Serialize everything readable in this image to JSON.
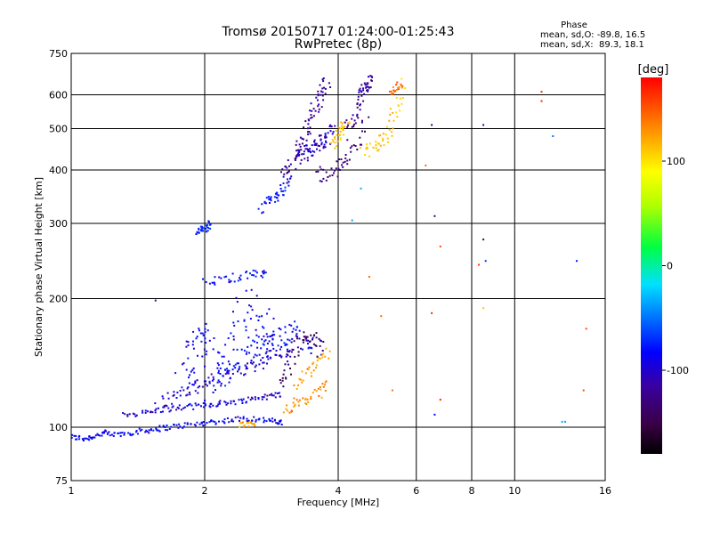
{
  "chart_data": {
    "type": "scatter",
    "title": "Tromsø 20150717 01:24:00-01:25:43",
    "subtitle": "RwPretec (8p)",
    "xlabel": "Frequency [MHz]",
    "ylabel": "Stationary phase Virtual Height [km]",
    "x_scale": "log",
    "y_scale": "log",
    "xlim": [
      1,
      16
    ],
    "ylim": [
      75,
      750
    ],
    "x_ticks": [
      1,
      2,
      4,
      6,
      8,
      10,
      16
    ],
    "x_tick_labels": [
      "1",
      "2",
      "4",
      "6",
      "8",
      "10",
      "16"
    ],
    "y_ticks": [
      75,
      100,
      200,
      300,
      400,
      500,
      600,
      750
    ],
    "y_tick_labels": [
      "75",
      "100",
      "200",
      "300",
      "400",
      "500",
      "600",
      "750"
    ],
    "grid": true,
    "phase_box": {
      "title": "Phase",
      "line1": "mean, sd,O: -89.8, 16.5",
      "line2": "mean, sd,X:  89.3, 18.1"
    },
    "colorbar": {
      "label": "[deg]",
      "range": [
        -180,
        180
      ],
      "ticks": [
        100,
        0,
        -100
      ],
      "tick_labels": [
        "100",
        "0",
        "-100"
      ]
    },
    "traces": [
      {
        "x": [
          1.0,
          1.06,
          1.12,
          1.18,
          1.25,
          1.35,
          1.45,
          1.55,
          1.65,
          1.8,
          1.95,
          2.1,
          2.3,
          2.5,
          2.7,
          2.9,
          3.0
        ],
        "y": [
          95,
          94,
          95,
          97,
          96,
          97,
          98,
          99,
          100,
          101,
          102,
          103,
          104,
          105,
          104,
          103,
          102
        ],
        "phase": -100,
        "spread": 0.02
      },
      {
        "x": [
          1.3,
          1.45,
          1.6,
          1.75,
          1.9,
          2.05,
          2.2,
          2.4,
          2.6,
          2.8,
          3.0
        ],
        "y": [
          107,
          108,
          110,
          111,
          112,
          113,
          114,
          115,
          117,
          118,
          120
        ],
        "phase": -105,
        "spread": 0.02
      },
      {
        "x": [
          1.55,
          1.7,
          1.85,
          2.0,
          2.2,
          2.4,
          2.6,
          2.8,
          3.0,
          3.2
        ],
        "y": [
          112,
          118,
          123,
          127,
          131,
          135,
          140,
          145,
          150,
          155
        ],
        "phase": -110,
        "spread": 0.05
      },
      {
        "x": [
          2.0,
          2.2,
          2.4,
          2.6,
          2.8,
          3.0,
          3.2,
          3.4,
          3.6
        ],
        "y": [
          120,
          130,
          140,
          150,
          160,
          165,
          170,
          160,
          150
        ],
        "phase": -95,
        "spread": 0.07
      },
      {
        "x": [
          1.75,
          1.85,
          1.9,
          1.95,
          2.0,
          2.1,
          2.2,
          2.3,
          2.4,
          2.5,
          2.6,
          2.7,
          2.8,
          2.9,
          3.0
        ],
        "y": [
          122,
          135,
          150,
          165,
          160,
          140,
          130,
          150,
          180,
          200,
          170,
          145,
          180,
          160,
          140
        ],
        "phase": -100,
        "spread": 0.1
      },
      {
        "x": [
          3.0,
          3.2,
          3.4,
          3.6,
          3.8
        ],
        "y": [
          110,
          113,
          116,
          120,
          128
        ],
        "phase": 140,
        "spread": 0.04
      },
      {
        "x": [
          3.2,
          3.4,
          3.6,
          3.8
        ],
        "y": [
          125,
          135,
          145,
          150
        ],
        "phase": 135,
        "spread": 0.05
      },
      {
        "x": [
          2.4,
          2.5,
          2.6
        ],
        "y": [
          101,
          102,
          101
        ],
        "phase": 130,
        "spread": 0.02
      },
      {
        "x": [
          2.95,
          3.1,
          3.25,
          3.4,
          3.55,
          3.7
        ],
        "y": [
          125,
          140,
          155,
          165,
          160,
          150
        ],
        "phase": -140,
        "spread": 0.05
      },
      {
        "x": [
          1.92,
          1.97,
          2.02,
          2.06
        ],
        "y": [
          285,
          292,
          290,
          302
        ],
        "phase": -90,
        "spread": 0.02
      },
      {
        "x": [
          2.0,
          2.2,
          2.4,
          2.6,
          2.8
        ],
        "y": [
          218,
          222,
          225,
          230,
          225
        ],
        "phase": -95,
        "spread": 0.03
      },
      {
        "x": [
          2.7,
          2.8,
          2.9,
          3.0,
          3.1
        ],
        "y": [
          320,
          340,
          350,
          360,
          380
        ],
        "phase": -95,
        "spread": 0.04
      },
      {
        "x": [
          3.0,
          3.1,
          3.2,
          3.3,
          3.4,
          3.5,
          3.6,
          3.7,
          3.8
        ],
        "y": [
          380,
          400,
          430,
          460,
          500,
          540,
          580,
          620,
          640
        ],
        "phase": -120,
        "spread": 0.05
      },
      {
        "x": [
          3.2,
          3.3,
          3.4,
          3.5,
          3.6,
          3.7,
          3.8,
          3.9
        ],
        "y": [
          420,
          430,
          440,
          450,
          460,
          470,
          480,
          500
        ],
        "phase": -110,
        "spread": 0.05
      },
      {
        "x": [
          3.6,
          3.8,
          4.0,
          4.2,
          4.4,
          4.6
        ],
        "y": [
          390,
          395,
          405,
          430,
          470,
          560
        ],
        "phase": -130,
        "spread": 0.06
      },
      {
        "x": [
          4.2,
          4.4,
          4.5,
          4.6,
          4.7,
          4.8
        ],
        "y": [
          500,
          550,
          600,
          620,
          640,
          660
        ],
        "phase": -120,
        "spread": 0.04
      },
      {
        "x": [
          3.9,
          4.0,
          4.1,
          4.2
        ],
        "y": [
          450,
          480,
          500,
          520
        ],
        "phase": 120,
        "spread": 0.04
      },
      {
        "x": [
          4.6,
          4.8,
          5.0,
          5.2,
          5.4,
          5.6
        ],
        "y": [
          445,
          450,
          470,
          490,
          550,
          640
        ],
        "phase": 120,
        "spread": 0.05
      },
      {
        "x": [
          5.2,
          5.4,
          5.6
        ],
        "y": [
          600,
          620,
          640
        ],
        "phase": 150,
        "spread": 0.03
      }
    ],
    "isolated_points": [
      {
        "x": 6.5,
        "y": 510,
        "phase": -110
      },
      {
        "x": 6.3,
        "y": 410,
        "phase": 150
      },
      {
        "x": 6.6,
        "y": 312,
        "phase": -140
      },
      {
        "x": 6.8,
        "y": 265,
        "phase": 160
      },
      {
        "x": 6.5,
        "y": 185,
        "phase": 170
      },
      {
        "x": 6.8,
        "y": 116,
        "phase": 170
      },
      {
        "x": 6.6,
        "y": 107,
        "phase": -100
      },
      {
        "x": 8.5,
        "y": 510,
        "phase": -110
      },
      {
        "x": 8.5,
        "y": 275,
        "phase": -140
      },
      {
        "x": 8.6,
        "y": 245,
        "phase": -80
      },
      {
        "x": 8.3,
        "y": 240,
        "phase": 165
      },
      {
        "x": 8.5,
        "y": 190,
        "phase": 120
      },
      {
        "x": 11.5,
        "y": 610,
        "phase": 170
      },
      {
        "x": 11.5,
        "y": 580,
        "phase": 170
      },
      {
        "x": 12.2,
        "y": 480,
        "phase": -60
      },
      {
        "x": 12.8,
        "y": 103,
        "phase": -40
      },
      {
        "x": 13.0,
        "y": 103,
        "phase": -40
      },
      {
        "x": 13.8,
        "y": 245,
        "phase": -90
      },
      {
        "x": 14.5,
        "y": 170,
        "phase": 160
      },
      {
        "x": 14.3,
        "y": 122,
        "phase": 160
      },
      {
        "x": 4.3,
        "y": 305,
        "phase": -40
      },
      {
        "x": 4.5,
        "y": 362,
        "phase": -40
      },
      {
        "x": 5.0,
        "y": 182,
        "phase": 150
      },
      {
        "x": 5.3,
        "y": 122,
        "phase": 150
      },
      {
        "x": 4.7,
        "y": 225,
        "phase": 150
      },
      {
        "x": 1.55,
        "y": 198,
        "phase": -120
      }
    ]
  }
}
